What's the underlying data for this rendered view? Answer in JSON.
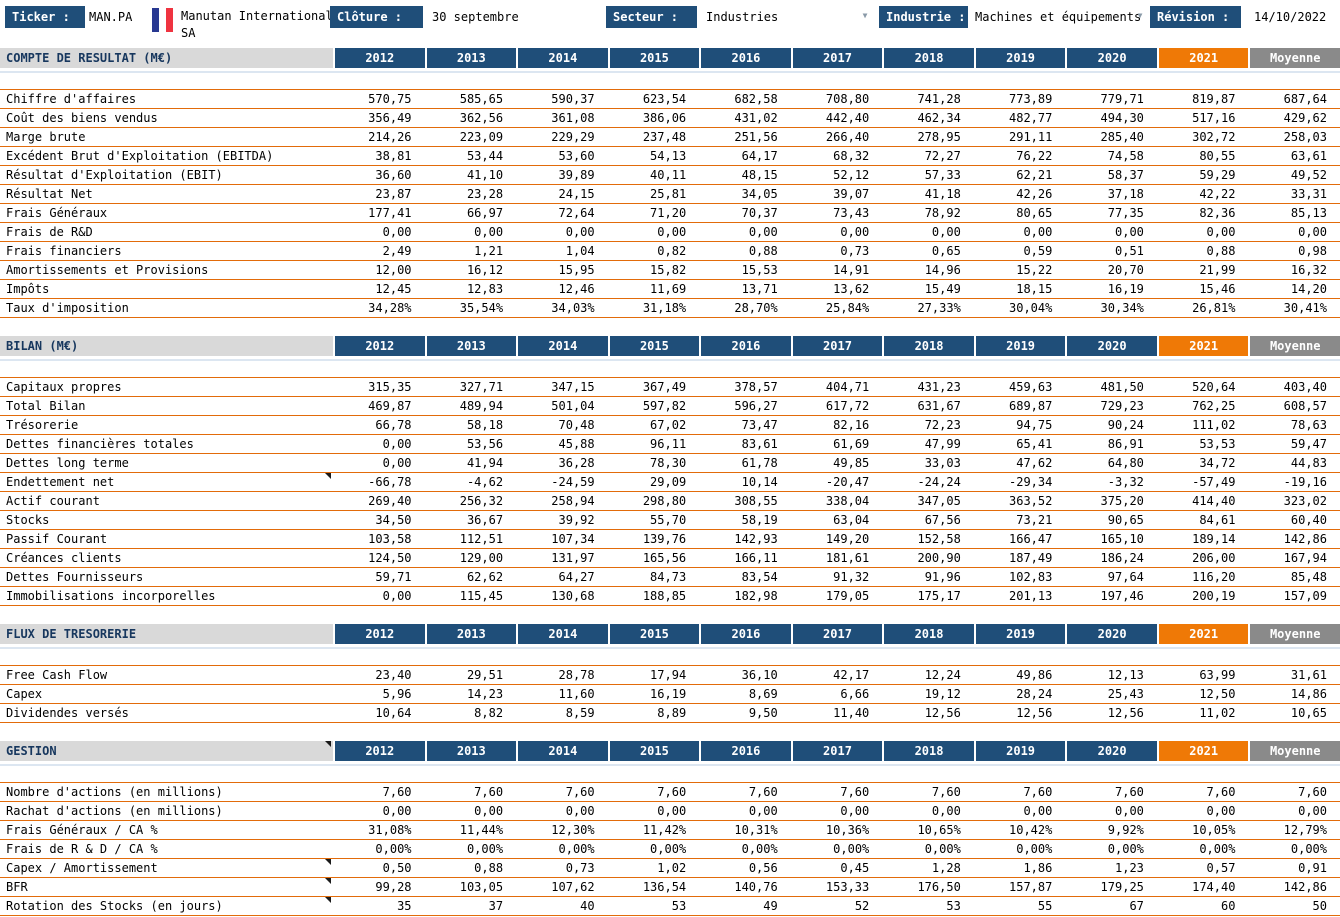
{
  "toolbar": {
    "ticker_label": "Ticker :",
    "ticker_value": "MAN.PA",
    "flag_icon": "france-flag",
    "company_name": "Manutan International SA",
    "cloture_label": "Clôture :",
    "cloture_value": "30 septembre",
    "secteur_label": "Secteur :",
    "secteur_value": "Industries",
    "industrie_label": "Industrie :",
    "industrie_value": "Machines et équipements",
    "revision_label": "Révision :",
    "revision_value": "14/10/2022"
  },
  "colors": {
    "header_navy": "#1F4E79",
    "accent_orange_2021": "#EF7906",
    "moyenne_gray": "#8A8A8A",
    "row_line_orange": "#E26B0A",
    "section_bg_gray": "#D9D9D9"
  },
  "columns": [
    "2012",
    "2013",
    "2014",
    "2015",
    "2016",
    "2017",
    "2018",
    "2019",
    "2020",
    "2021",
    "Moyenne"
  ],
  "sections": [
    {
      "title": "COMPTE DE RESULTAT (M€)",
      "header_marker": false,
      "rows": [
        {
          "label": "Chiffre d'affaires",
          "values": [
            "570,75",
            "585,65",
            "590,37",
            "623,54",
            "682,58",
            "708,80",
            "741,28",
            "773,89",
            "779,71",
            "819,87",
            "687,64"
          ]
        },
        {
          "label": "Coût des biens vendus",
          "values": [
            "356,49",
            "362,56",
            "361,08",
            "386,06",
            "431,02",
            "442,40",
            "462,34",
            "482,77",
            "494,30",
            "517,16",
            "429,62"
          ]
        },
        {
          "label": "Marge brute",
          "values": [
            "214,26",
            "223,09",
            "229,29",
            "237,48",
            "251,56",
            "266,40",
            "278,95",
            "291,11",
            "285,40",
            "302,72",
            "258,03"
          ]
        },
        {
          "label": "Excédent Brut d'Exploitation (EBITDA)",
          "values": [
            "38,81",
            "53,44",
            "53,60",
            "54,13",
            "64,17",
            "68,32",
            "72,27",
            "76,22",
            "74,58",
            "80,55",
            "63,61"
          ]
        },
        {
          "label": "Résultat d'Exploitation (EBIT)",
          "values": [
            "36,60",
            "41,10",
            "39,89",
            "40,11",
            "48,15",
            "52,12",
            "57,33",
            "62,21",
            "58,37",
            "59,29",
            "49,52"
          ]
        },
        {
          "label": "Résultat Net",
          "values": [
            "23,87",
            "23,28",
            "24,15",
            "25,81",
            "34,05",
            "39,07",
            "41,18",
            "42,26",
            "37,18",
            "42,22",
            "33,31"
          ]
        },
        {
          "label": "Frais Généraux",
          "values": [
            "177,41",
            "66,97",
            "72,64",
            "71,20",
            "70,37",
            "73,43",
            "78,92",
            "80,65",
            "77,35",
            "82,36",
            "85,13"
          ]
        },
        {
          "label": "Frais de R&D",
          "values": [
            "0,00",
            "0,00",
            "0,00",
            "0,00",
            "0,00",
            "0,00",
            "0,00",
            "0,00",
            "0,00",
            "0,00",
            "0,00"
          ]
        },
        {
          "label": "Frais financiers",
          "values": [
            "2,49",
            "1,21",
            "1,04",
            "0,82",
            "0,88",
            "0,73",
            "0,65",
            "0,59",
            "0,51",
            "0,88",
            "0,98"
          ]
        },
        {
          "label": "Amortissements et Provisions",
          "values": [
            "12,00",
            "16,12",
            "15,95",
            "15,82",
            "15,53",
            "14,91",
            "14,96",
            "15,22",
            "20,70",
            "21,99",
            "16,32"
          ]
        },
        {
          "label": "Impôts",
          "values": [
            "12,45",
            "12,83",
            "12,46",
            "11,69",
            "13,71",
            "13,62",
            "15,49",
            "18,15",
            "16,19",
            "15,46",
            "14,20"
          ]
        },
        {
          "label": "Taux d'imposition",
          "values": [
            "34,28%",
            "35,54%",
            "34,03%",
            "31,18%",
            "28,70%",
            "25,84%",
            "27,33%",
            "30,04%",
            "30,34%",
            "26,81%",
            "30,41%"
          ]
        }
      ]
    },
    {
      "title": "BILAN (M€)",
      "header_marker": false,
      "rows": [
        {
          "label": "Capitaux propres",
          "values": [
            "315,35",
            "327,71",
            "347,15",
            "367,49",
            "378,57",
            "404,71",
            "431,23",
            "459,63",
            "481,50",
            "520,64",
            "403,40"
          ]
        },
        {
          "label": "Total Bilan",
          "values": [
            "469,87",
            "489,94",
            "501,04",
            "597,82",
            "596,27",
            "617,72",
            "631,67",
            "689,87",
            "729,23",
            "762,25",
            "608,57"
          ]
        },
        {
          "label": "Trésorerie",
          "values": [
            "66,78",
            "58,18",
            "70,48",
            "67,02",
            "73,47",
            "82,16",
            "72,23",
            "94,75",
            "90,24",
            "111,02",
            "78,63"
          ]
        },
        {
          "label": "Dettes financières totales",
          "values": [
            "0,00",
            "53,56",
            "45,88",
            "96,11",
            "83,61",
            "61,69",
            "47,99",
            "65,41",
            "86,91",
            "53,53",
            "59,47"
          ]
        },
        {
          "label": "Dettes long terme",
          "values": [
            "0,00",
            "41,94",
            "36,28",
            "78,30",
            "61,78",
            "49,85",
            "33,03",
            "47,62",
            "64,80",
            "34,72",
            "44,83"
          ]
        },
        {
          "label": "Endettement net",
          "marker": true,
          "values": [
            "-66,78",
            "-4,62",
            "-24,59",
            "29,09",
            "10,14",
            "-20,47",
            "-24,24",
            "-29,34",
            "-3,32",
            "-57,49",
            "-19,16"
          ]
        },
        {
          "label": "Actif courant",
          "values": [
            "269,40",
            "256,32",
            "258,94",
            "298,80",
            "308,55",
            "338,04",
            "347,05",
            "363,52",
            "375,20",
            "414,40",
            "323,02"
          ]
        },
        {
          "label": "Stocks",
          "values": [
            "34,50",
            "36,67",
            "39,92",
            "55,70",
            "58,19",
            "63,04",
            "67,56",
            "73,21",
            "90,65",
            "84,61",
            "60,40"
          ]
        },
        {
          "label": "Passif Courant",
          "values": [
            "103,58",
            "112,51",
            "107,34",
            "139,76",
            "142,93",
            "149,20",
            "152,58",
            "166,47",
            "165,10",
            "189,14",
            "142,86"
          ]
        },
        {
          "label": "Créances clients",
          "values": [
            "124,50",
            "129,00",
            "131,97",
            "165,56",
            "166,11",
            "181,61",
            "200,90",
            "187,49",
            "186,24",
            "206,00",
            "167,94"
          ]
        },
        {
          "label": "Dettes Fournisseurs",
          "values": [
            "59,71",
            "62,62",
            "64,27",
            "84,73",
            "83,54",
            "91,32",
            "91,96",
            "102,83",
            "97,64",
            "116,20",
            "85,48"
          ]
        },
        {
          "label": "Immobilisations incorporelles",
          "values": [
            "0,00",
            "115,45",
            "130,68",
            "188,85",
            "182,98",
            "179,05",
            "175,17",
            "201,13",
            "197,46",
            "200,19",
            "157,09"
          ]
        }
      ]
    },
    {
      "title": "FLUX DE TRESORERIE",
      "header_marker": false,
      "rows": [
        {
          "label": "Free Cash Flow",
          "values": [
            "23,40",
            "29,51",
            "28,78",
            "17,94",
            "36,10",
            "42,17",
            "12,24",
            "49,86",
            "12,13",
            "63,99",
            "31,61"
          ]
        },
        {
          "label": "Capex",
          "values": [
            "5,96",
            "14,23",
            "11,60",
            "16,19",
            "8,69",
            "6,66",
            "19,12",
            "28,24",
            "25,43",
            "12,50",
            "14,86"
          ]
        },
        {
          "label": "Dividendes versés",
          "values": [
            "10,64",
            "8,82",
            "8,59",
            "8,89",
            "9,50",
            "11,40",
            "12,56",
            "12,56",
            "12,56",
            "11,02",
            "10,65"
          ]
        }
      ]
    },
    {
      "title": "GESTION",
      "header_marker": true,
      "rows": [
        {
          "label": "Nombre d'actions (en millions)",
          "values": [
            "7,60",
            "7,60",
            "7,60",
            "7,60",
            "7,60",
            "7,60",
            "7,60",
            "7,60",
            "7,60",
            "7,60",
            "7,60"
          ]
        },
        {
          "label": "Rachat d'actions (en millions)",
          "values": [
            "0,00",
            "0,00",
            "0,00",
            "0,00",
            "0,00",
            "0,00",
            "0,00",
            "0,00",
            "0,00",
            "0,00",
            "0,00"
          ]
        },
        {
          "label": "Frais Généraux / CA %",
          "values": [
            "31,08%",
            "11,44%",
            "12,30%",
            "11,42%",
            "10,31%",
            "10,36%",
            "10,65%",
            "10,42%",
            "9,92%",
            "10,05%",
            "12,79%"
          ]
        },
        {
          "label": "Frais de R & D / CA %",
          "values": [
            "0,00%",
            "0,00%",
            "0,00%",
            "0,00%",
            "0,00%",
            "0,00%",
            "0,00%",
            "0,00%",
            "0,00%",
            "0,00%",
            "0,00%"
          ]
        },
        {
          "label": "Capex / Amortissement",
          "marker": true,
          "values": [
            "0,50",
            "0,88",
            "0,73",
            "1,02",
            "0,56",
            "0,45",
            "1,28",
            "1,86",
            "1,23",
            "0,57",
            "0,91"
          ]
        },
        {
          "label": "BFR",
          "marker": true,
          "values": [
            "99,28",
            "103,05",
            "107,62",
            "136,54",
            "140,76",
            "153,33",
            "176,50",
            "157,87",
            "179,25",
            "174,40",
            "142,86"
          ]
        },
        {
          "label": "Rotation des Stocks (en jours)",
          "marker": true,
          "values": [
            "35",
            "37",
            "40",
            "53",
            "49",
            "52",
            "53",
            "55",
            "67",
            "60",
            "50"
          ]
        }
      ]
    }
  ]
}
